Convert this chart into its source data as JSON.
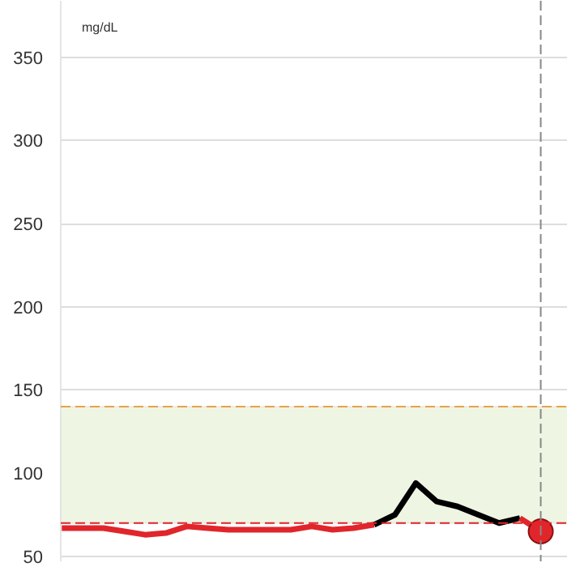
{
  "chart_data": {
    "type": "line",
    "ylabel": "mg/dL",
    "categories": [
      null,
      null,
      null,
      null,
      null,
      null,
      null,
      null,
      null,
      null,
      null,
      null,
      null,
      null,
      null,
      null,
      null,
      null,
      null,
      null,
      null,
      null,
      null,
      null
    ],
    "series": [
      {
        "color": "#e0262b",
        "values": [
          67,
          67,
          67,
          65,
          63,
          64,
          68,
          67,
          66,
          66,
          66,
          66,
          68,
          66,
          67,
          69,
          null,
          null,
          null,
          null,
          null,
          null,
          null,
          null
        ]
      },
      {
        "color": "#000000",
        "values": [
          null,
          null,
          null,
          null,
          null,
          null,
          null,
          null,
          null,
          null,
          null,
          null,
          null,
          null,
          null,
          69,
          75,
          94,
          83,
          80,
          75,
          70,
          73,
          null
        ]
      },
      {
        "color": "#e0262b",
        "values": [
          null,
          null,
          null,
          null,
          null,
          null,
          null,
          null,
          null,
          null,
          null,
          null,
          null,
          null,
          null,
          null,
          null,
          null,
          null,
          null,
          null,
          null,
          73,
          65
        ]
      },
      {
        "type": "scatter",
        "marker": "circle",
        "color": "#e0262b",
        "values": [
          null,
          null,
          null,
          null,
          null,
          null,
          null,
          null,
          null,
          null,
          null,
          null,
          null,
          null,
          null,
          null,
          null,
          null,
          null,
          null,
          null,
          null,
          null,
          65
        ]
      }
    ],
    "ylim": [
      47,
      384
    ],
    "yticks": [
      50,
      100,
      150,
      200,
      250,
      300,
      350
    ],
    "grid": "y",
    "marker": "none",
    "line_style": "solid",
    "bands": [
      {
        "axis": "y",
        "from": 70,
        "to": 140,
        "color": "#eef5e3"
      }
    ],
    "ref_lines": [
      {
        "axis": "y",
        "value": 140,
        "color": "#e8a24a",
        "line_style": "dashed"
      },
      {
        "axis": "y",
        "value": 70,
        "color": "#e0262b",
        "line_style": "dashed"
      }
    ]
  }
}
